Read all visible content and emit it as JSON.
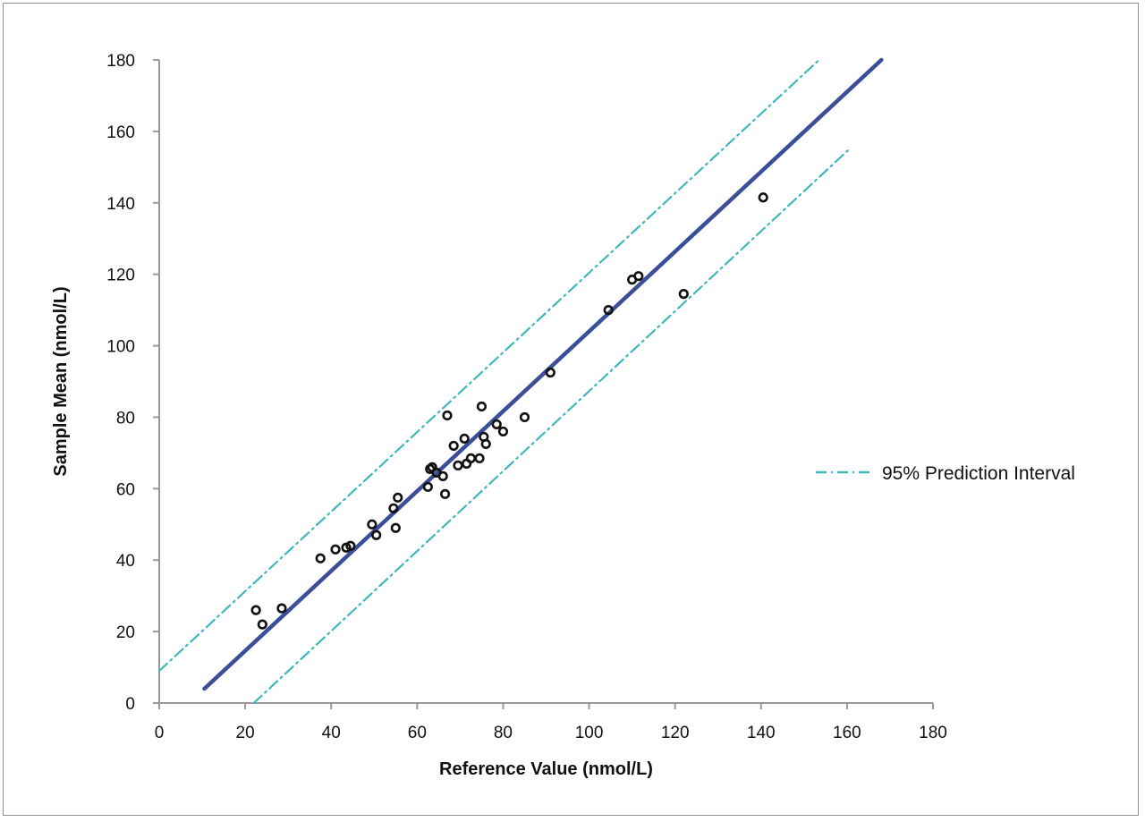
{
  "chart_data": {
    "type": "scatter",
    "xlabel": "Reference Value (nmol/L)",
    "ylabel": "Sample Mean (nmol/L)",
    "xlim": [
      0,
      180
    ],
    "ylim": [
      0,
      180
    ],
    "xticks": [
      "0",
      "20",
      "40",
      "60",
      "80",
      "100",
      "120",
      "140",
      "160",
      "180"
    ],
    "yticks": [
      "0",
      "20",
      "40",
      "60",
      "80",
      "100",
      "120",
      "140",
      "160",
      "180"
    ],
    "grid": false,
    "legend_placement": "right",
    "points": [
      {
        "x": 22.5,
        "y": 26.0
      },
      {
        "x": 24.0,
        "y": 22.0
      },
      {
        "x": 28.5,
        "y": 26.5
      },
      {
        "x": 37.5,
        "y": 40.5
      },
      {
        "x": 41.0,
        "y": 43.0
      },
      {
        "x": 43.5,
        "y": 43.5
      },
      {
        "x": 44.5,
        "y": 44.0
      },
      {
        "x": 49.5,
        "y": 50.0
      },
      {
        "x": 50.5,
        "y": 47.0
      },
      {
        "x": 54.5,
        "y": 54.5
      },
      {
        "x": 55.5,
        "y": 57.5
      },
      {
        "x": 55.0,
        "y": 49.0
      },
      {
        "x": 62.5,
        "y": 60.5
      },
      {
        "x": 63.0,
        "y": 65.5
      },
      {
        "x": 63.5,
        "y": 66.0
      },
      {
        "x": 64.5,
        "y": 64.5
      },
      {
        "x": 66.0,
        "y": 63.5
      },
      {
        "x": 66.5,
        "y": 58.5
      },
      {
        "x": 67.0,
        "y": 80.5
      },
      {
        "x": 68.5,
        "y": 72.0
      },
      {
        "x": 69.5,
        "y": 66.5
      },
      {
        "x": 71.0,
        "y": 74.0
      },
      {
        "x": 71.5,
        "y": 67.0
      },
      {
        "x": 72.5,
        "y": 68.5
      },
      {
        "x": 74.5,
        "y": 68.5
      },
      {
        "x": 75.0,
        "y": 83.0
      },
      {
        "x": 75.5,
        "y": 74.5
      },
      {
        "x": 76.0,
        "y": 72.5
      },
      {
        "x": 78.5,
        "y": 78.0
      },
      {
        "x": 80.0,
        "y": 76.0
      },
      {
        "x": 85.0,
        "y": 80.0
      },
      {
        "x": 91.0,
        "y": 92.5
      },
      {
        "x": 104.5,
        "y": 110.0
      },
      {
        "x": 110.0,
        "y": 118.5
      },
      {
        "x": 111.5,
        "y": 119.5
      },
      {
        "x": 122.0,
        "y": 114.5
      },
      {
        "x": 140.5,
        "y": 141.5
      }
    ],
    "lines": {
      "fit": {
        "x": [
          10.5,
          168.0
        ],
        "y": [
          4.0,
          180.0
        ],
        "color": "#3a4f98"
      },
      "upper_pi": {
        "x": [
          0,
          153.5
        ],
        "y": [
          9.0,
          180.0
        ],
        "color": "#3fb7bd"
      },
      "lower_pi": {
        "x": [
          22.0,
          160.5
        ],
        "y": [
          0,
          155.0
        ],
        "color": "#3fb7bd"
      }
    },
    "legend": [
      {
        "label": "95% Prediction Interval",
        "style": "dash-dot",
        "color": "#3fb7bd"
      }
    ]
  }
}
